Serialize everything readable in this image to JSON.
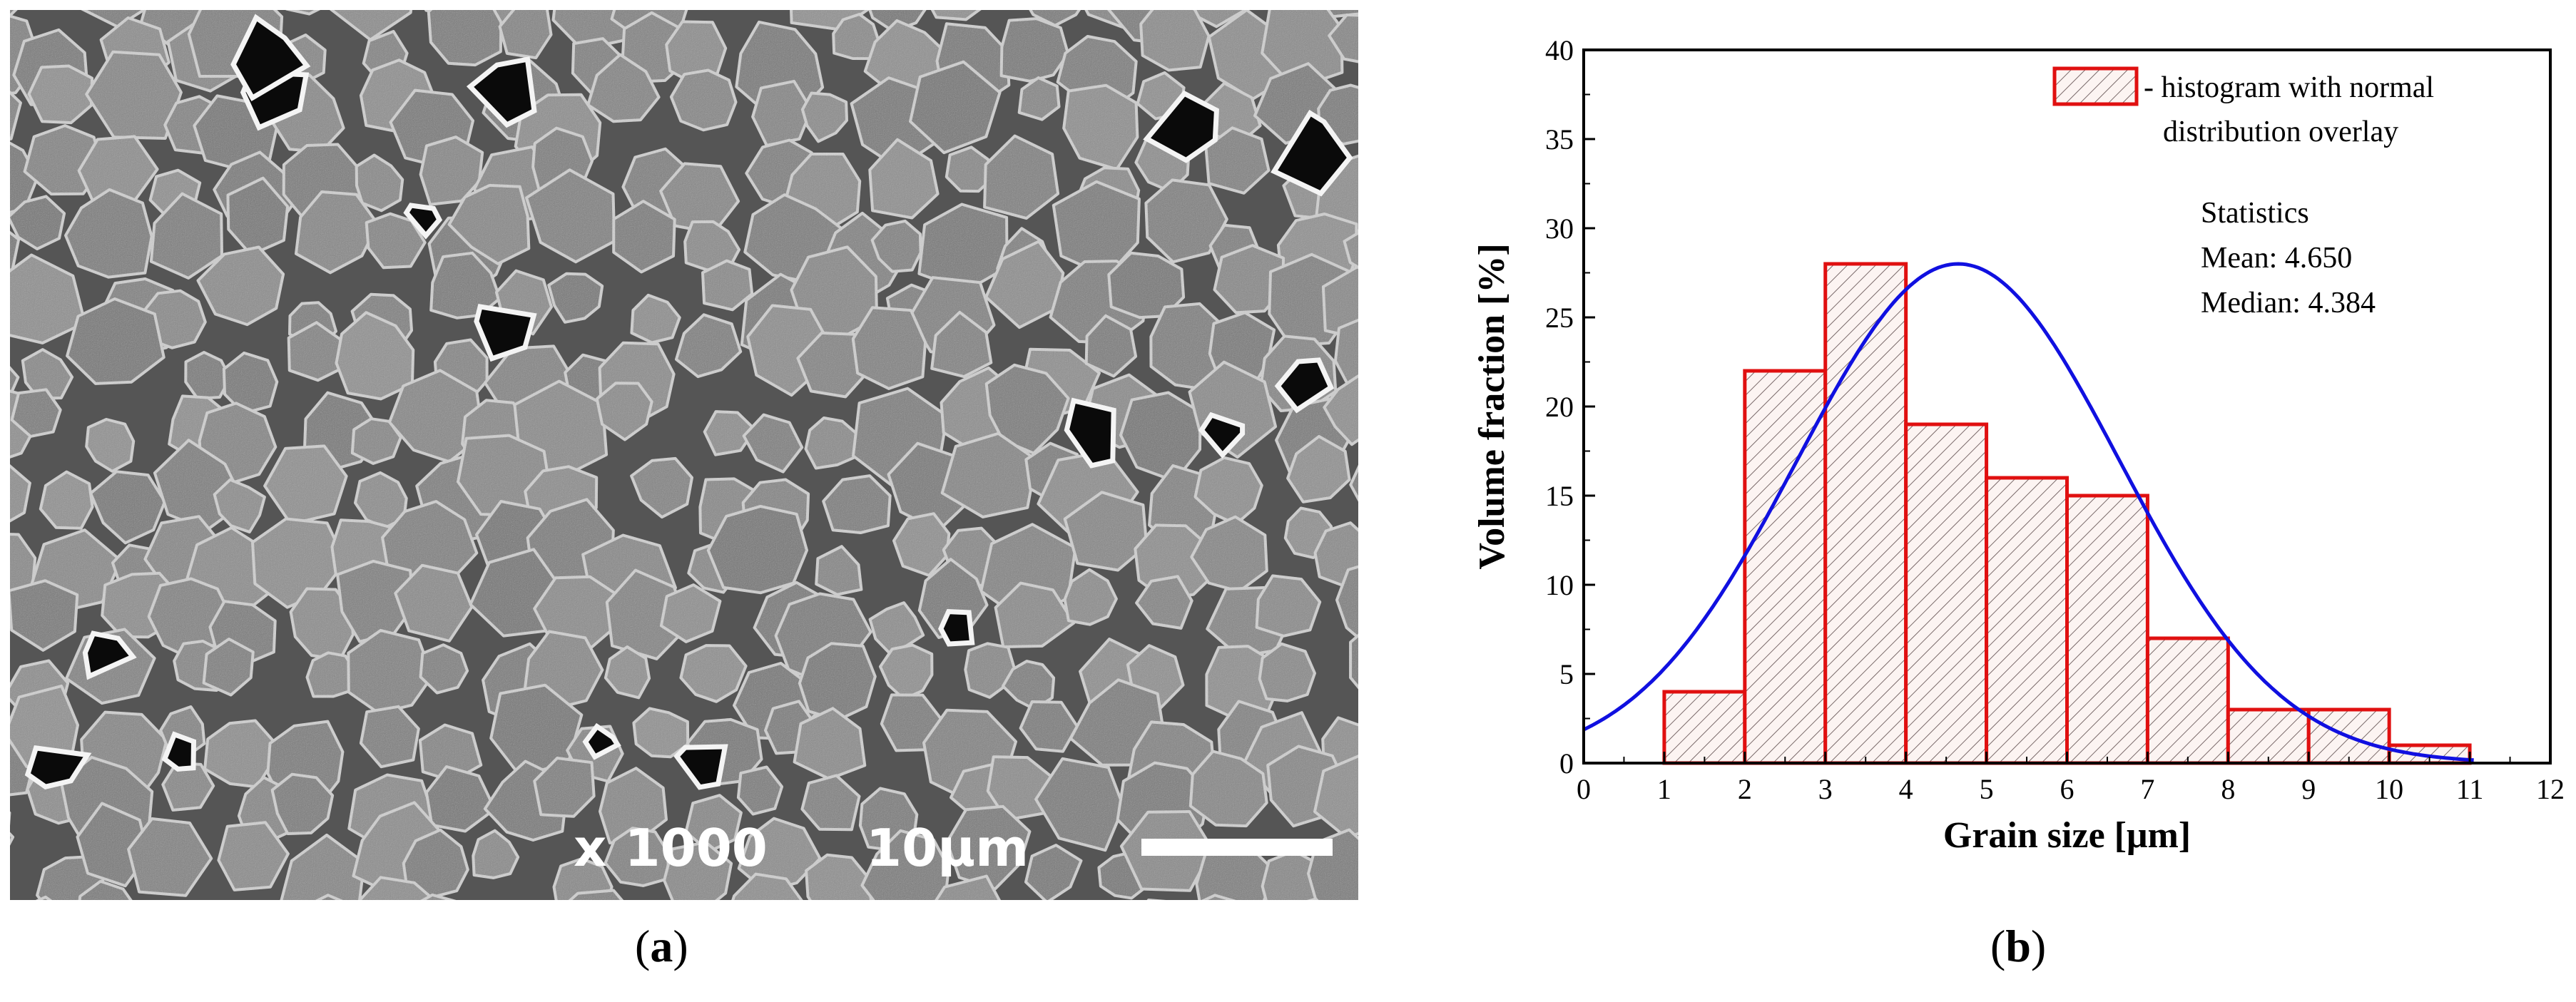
{
  "panels": {
    "a": {
      "open": "(",
      "letter": "a",
      "close": ")"
    },
    "b": {
      "open": "(",
      "letter": "b",
      "close": ")"
    }
  },
  "sem": {
    "magnification": "x 1000",
    "scale_label": "10μm"
  },
  "chart_data": {
    "type": "bar",
    "xlabel": "Grain size [μm]",
    "ylabel": "Volume fraction [%]",
    "xlim": [
      0,
      12
    ],
    "ylim": [
      0,
      40
    ],
    "xticks": [
      0,
      1,
      2,
      3,
      4,
      5,
      6,
      7,
      8,
      9,
      10,
      11,
      12
    ],
    "yticks": [
      0,
      5,
      10,
      15,
      20,
      25,
      30,
      35,
      40
    ],
    "bins": [
      {
        "x0": 1,
        "x1": 2,
        "value": 4
      },
      {
        "x0": 2,
        "x1": 3,
        "value": 22
      },
      {
        "x0": 3,
        "x1": 4,
        "value": 28
      },
      {
        "x0": 4,
        "x1": 5,
        "value": 19
      },
      {
        "x0": 5,
        "x1": 6,
        "value": 16
      },
      {
        "x0": 6,
        "x1": 7,
        "value": 15
      },
      {
        "x0": 7,
        "x1": 8,
        "value": 7
      },
      {
        "x0": 8,
        "x1": 9,
        "value": 3
      },
      {
        "x0": 9,
        "x1": 10,
        "value": 3
      },
      {
        "x0": 10,
        "x1": 11,
        "value": 1
      }
    ],
    "normal_curve": {
      "mean": 4.65,
      "peak": 28,
      "sigma": 2.0,
      "color": "#1010e0"
    },
    "bar_edge_color": "#e01010",
    "legend": {
      "placement": "top-right",
      "line1": "- histogram with normal",
      "line2": "distribution overlay"
    },
    "stats": {
      "title": "Statistics",
      "mean": "Mean: 4.650",
      "median": "Median: 4.384"
    }
  }
}
